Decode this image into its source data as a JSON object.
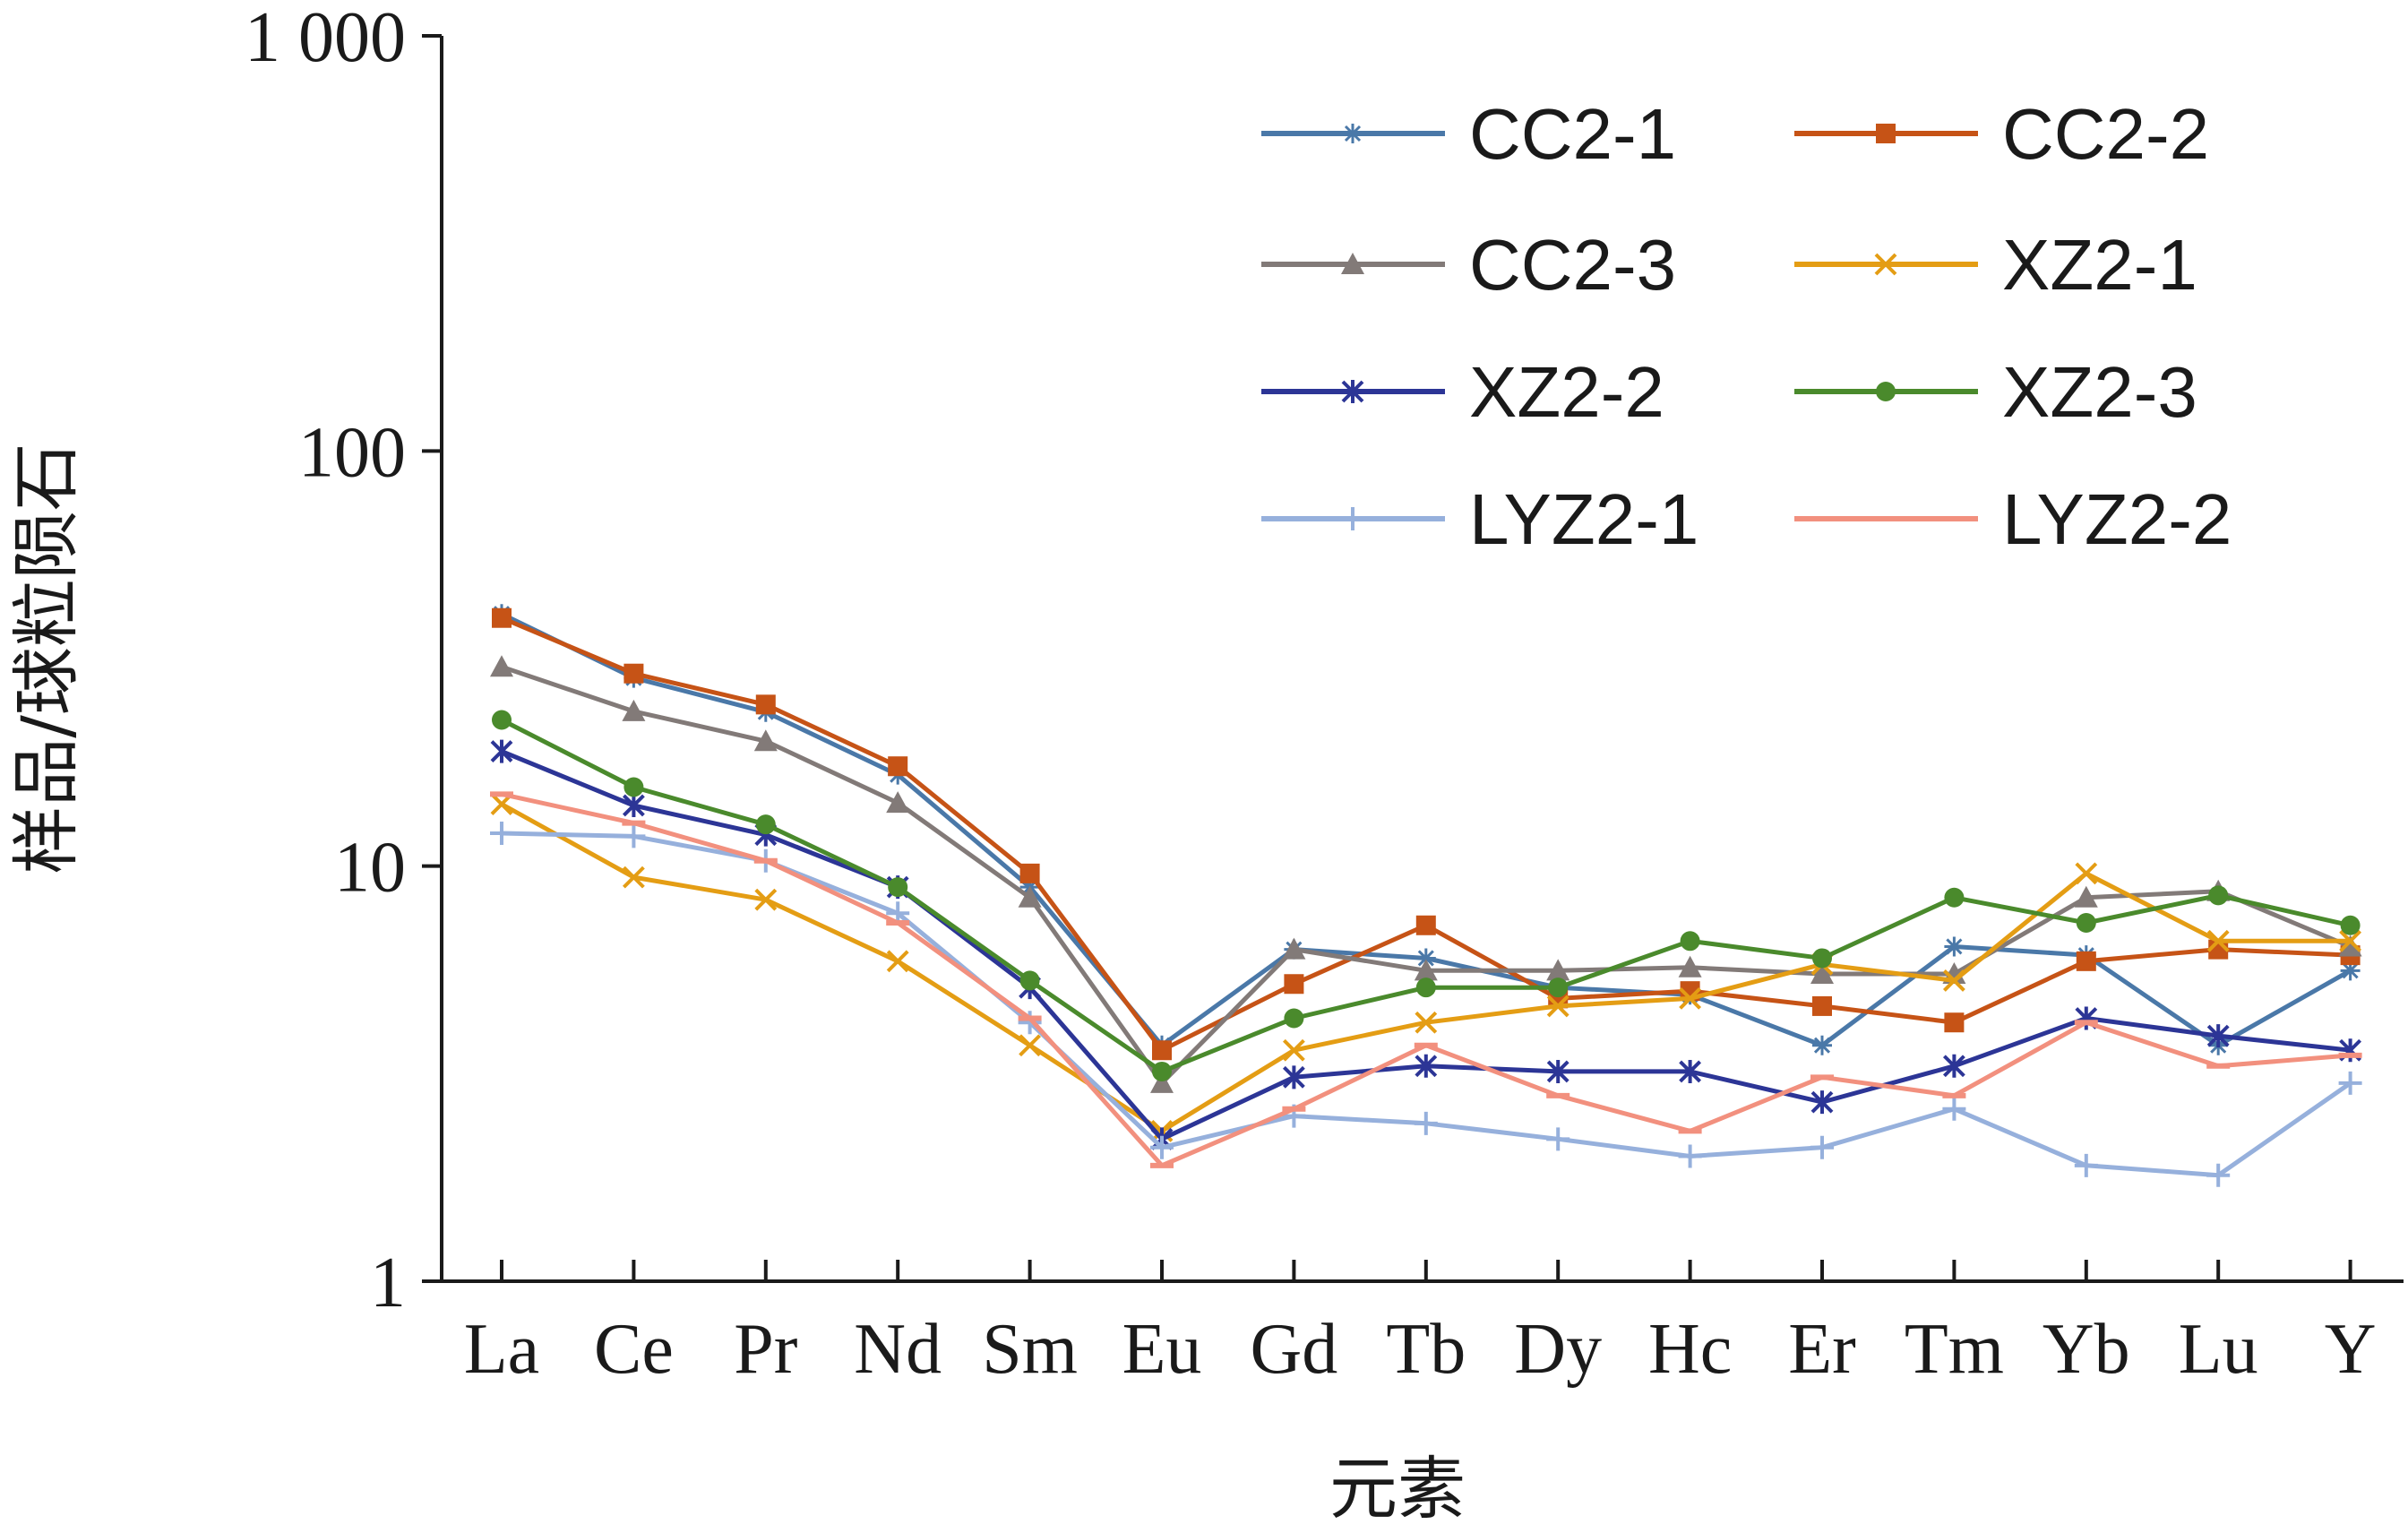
{
  "chart_data": {
    "type": "line",
    "xlabel": "元素",
    "ylabel": "样品/球粒陨石",
    "y_scale": "log",
    "ylim": [
      1,
      1000
    ],
    "y_ticks": [
      {
        "value": 1,
        "label": "1"
      },
      {
        "value": 10,
        "label": "10"
      },
      {
        "value": 100,
        "label": "100"
      },
      {
        "value": 1000,
        "label": "1 000"
      }
    ],
    "categories": [
      "La",
      "Ce",
      "Pr",
      "Nd",
      "Sm",
      "Eu",
      "Gd",
      "Tb",
      "Dy",
      "Hc",
      "Er",
      "Tm",
      "Yb",
      "Lu",
      "Y"
    ],
    "legend_position": "top-right",
    "grid": false,
    "series": [
      {
        "name": "CC2-1",
        "color": "#4a78a8",
        "marker": "star",
        "values": [
          40.5,
          28.4,
          23.5,
          16.6,
          8.9,
          3.7,
          6.3,
          6.0,
          5.1,
          4.9,
          3.7,
          6.4,
          6.1,
          3.7,
          5.6
        ]
      },
      {
        "name": "CC2-2",
        "color": "#c65316",
        "marker": "square",
        "values": [
          39.6,
          29.1,
          24.5,
          17.4,
          9.6,
          3.6,
          5.2,
          7.2,
          4.8,
          5.0,
          4.6,
          4.2,
          5.9,
          6.3,
          6.1
        ]
      },
      {
        "name": "CC2-3",
        "color": "#827a78",
        "marker": "triangle",
        "values": [
          30.2,
          23.6,
          20.0,
          14.2,
          8.4,
          3.0,
          6.3,
          5.6,
          5.6,
          5.7,
          5.5,
          5.5,
          8.4,
          8.7,
          6.4
        ]
      },
      {
        "name": "XZ2-1",
        "color": "#e49d14",
        "marker": "x",
        "values": [
          14.1,
          9.4,
          8.3,
          5.9,
          3.7,
          2.3,
          3.6,
          4.2,
          4.6,
          4.8,
          5.8,
          5.3,
          9.6,
          6.6,
          6.6
        ]
      },
      {
        "name": "XZ2-2",
        "color": "#2c3596",
        "marker": "asterisk",
        "values": [
          18.9,
          14.0,
          11.9,
          8.9,
          5.1,
          2.2,
          3.1,
          3.3,
          3.2,
          3.2,
          2.7,
          3.3,
          4.3,
          3.9,
          3.6
        ]
      },
      {
        "name": "XZ2-3",
        "color": "#4a8a2c",
        "marker": "circle",
        "values": [
          22.5,
          15.5,
          12.6,
          8.9,
          5.3,
          3.2,
          4.3,
          5.1,
          5.1,
          6.6,
          6.0,
          8.4,
          7.3,
          8.5,
          7.2
        ]
      },
      {
        "name": "LYZ2-1",
        "color": "#96b0dc",
        "marker": "plus",
        "values": [
          12.0,
          11.8,
          10.3,
          7.7,
          4.2,
          2.1,
          2.5,
          2.4,
          2.2,
          2.0,
          2.1,
          2.6,
          1.9,
          1.8,
          3.0
        ]
      },
      {
        "name": "LYZ2-2",
        "color": "#f2907e",
        "marker": "dash",
        "values": [
          14.9,
          12.7,
          10.3,
          7.3,
          4.3,
          1.9,
          2.6,
          3.7,
          2.8,
          2.3,
          3.1,
          2.8,
          4.2,
          3.3,
          3.5
        ]
      }
    ]
  }
}
